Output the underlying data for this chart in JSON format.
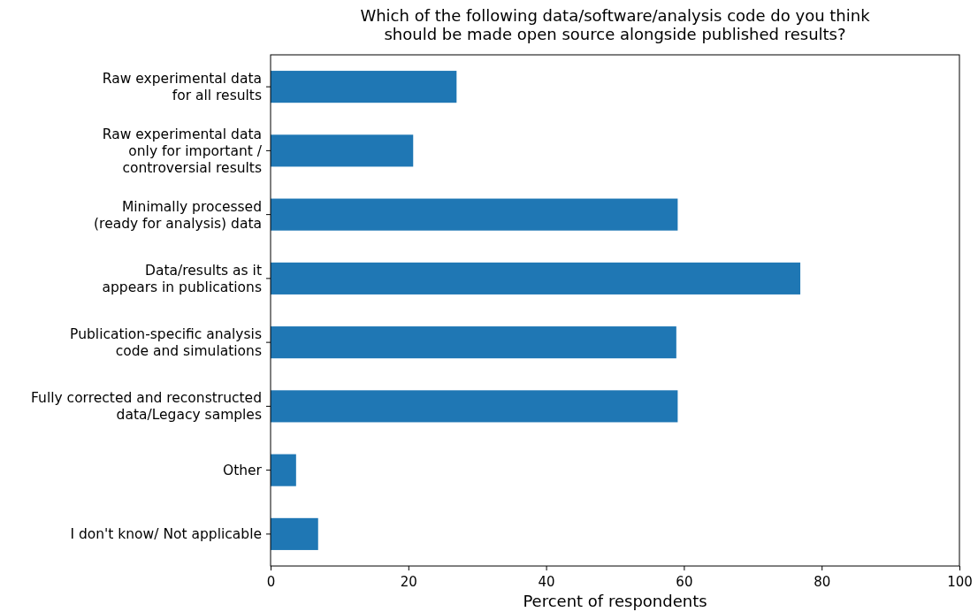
{
  "chart_data": {
    "type": "bar",
    "orientation": "horizontal",
    "title": "Which of the following data/software/analysis code do you think\nshould be made open source alongside published results?",
    "xlabel": "Percent of respondents",
    "categories": [
      "Raw experimental data\nfor all results",
      "Raw experimental data\nonly for important /\ncontroversial results",
      "Minimally processed\n(ready for analysis) data",
      "Data/results as it\nappears in publications",
      "Publication-specific analysis\ncode and simulations",
      "Fully corrected and reconstructed\ndata/Legacy samples",
      "Other",
      "I don't know/ Not applicable"
    ],
    "values": [
      27.0,
      20.7,
      59.1,
      76.9,
      58.9,
      59.1,
      3.7,
      6.9
    ],
    "color": "#1f77b4",
    "xlim": [
      0,
      100
    ],
    "xticks": [
      0,
      20,
      40,
      60,
      80,
      100
    ]
  }
}
